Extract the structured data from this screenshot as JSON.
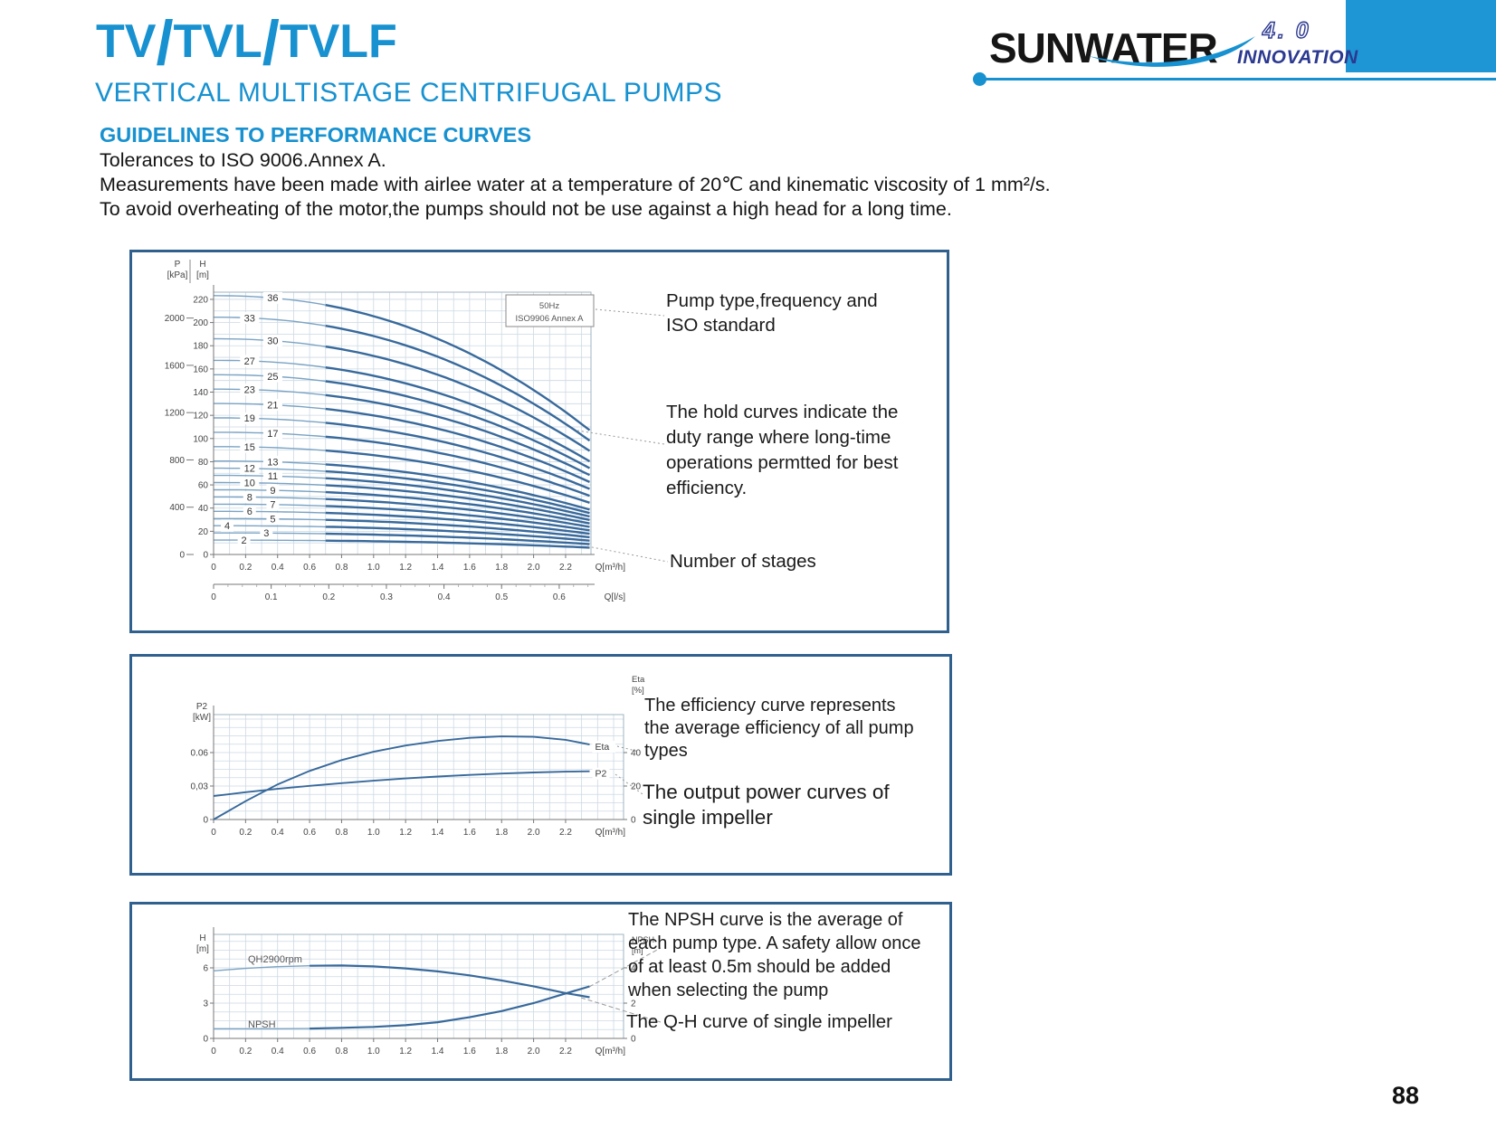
{
  "header": {
    "title": "TV/TVL/TVLF",
    "subtitle": "VERTICAL MULTISTAGE CENTRIFUGAL PUMPS"
  },
  "logo": {
    "brand": "SUNWATER",
    "version": "4. 0",
    "tagline": "INNOVATION"
  },
  "guidelines": {
    "heading": "GUIDELINES TO PERFORMANCE CURVES",
    "lines": [
      "Tolerances to ISO 9006.Annex A.",
      "Measurements have been made with airlee water at a temperature of 20℃ and kinematic viscosity of 1 mm²/s.",
      "To avoid overheating of the motor,the pumps should not be use against a high head for a long time."
    ]
  },
  "footer": {
    "page_number": "88"
  },
  "colors": {
    "accent": "#1791d0",
    "logo_navy": "#2b3990",
    "corner_block": "#1e95d4",
    "box_border": "#30618e",
    "grid": "#ccd9e3",
    "curve": "#7aa3c4",
    "curve_bold": "#38699b",
    "leader": "#999999",
    "axis_text": "#444444"
  },
  "chart_data": [
    {
      "id": "qh-stage-family",
      "type": "line",
      "corner_box": {
        "line1": "50Hz",
        "line2": "ISO9906 Annex A"
      },
      "y_axis_pressure": {
        "label": "P",
        "unit": "[kPa]",
        "ticks": [
          0,
          400,
          800,
          1200,
          1600,
          2000
        ]
      },
      "y_axis_head": {
        "label": "H",
        "unit": "[m]",
        "ticks": [
          0,
          20,
          40,
          60,
          80,
          100,
          120,
          140,
          160,
          180,
          200,
          220
        ]
      },
      "x_axis_primary": {
        "unit": "Q[m³/h]",
        "ticks": [
          0,
          0.2,
          0.4,
          0.6,
          0.8,
          1.0,
          1.2,
          1.4,
          1.6,
          1.8,
          2.0,
          2.2
        ]
      },
      "x_axis_secondary": {
        "unit": "Q[l/s]",
        "ticks": [
          0,
          0.1,
          0.2,
          0.3,
          0.4,
          0.5,
          0.6
        ]
      },
      "stages": [
        2,
        3,
        4,
        5,
        6,
        7,
        8,
        9,
        10,
        11,
        12,
        13,
        15,
        17,
        19,
        21,
        23,
        25,
        27,
        30,
        33,
        36
      ],
      "head_per_stage_m": 6.2,
      "q_end_m3h": 2.35,
      "duty_range_start_m3h": 0.72,
      "head_drop_fraction_at_end": 0.52,
      "annotations": [
        {
          "text": "Pump type,frequency and ISO standard"
        },
        {
          "text": "The hold curves indicate the duty range where long-time operations permtted for best efficiency."
        },
        {
          "text": "Number of stages"
        }
      ]
    },
    {
      "id": "power-efficiency",
      "type": "line",
      "y_axis_left": {
        "label": "P2",
        "unit": "[kW]",
        "ticks": [
          0,
          0.03,
          0.06
        ],
        "tick_labels": [
          "0",
          "0,03",
          "0.06"
        ]
      },
      "y_axis_right": {
        "label": "Eta",
        "unit": "[%]",
        "ticks": [
          0,
          20,
          40
        ]
      },
      "x_axis": {
        "unit": "Q[m³/h]",
        "ticks": [
          0,
          0.2,
          0.4,
          0.6,
          0.8,
          1.0,
          1.2,
          1.4,
          1.6,
          1.8,
          2.0,
          2.2
        ]
      },
      "x": [
        0,
        0.2,
        0.4,
        0.6,
        0.8,
        1.0,
        1.2,
        1.4,
        1.6,
        1.8,
        2.0,
        2.2,
        2.35
      ],
      "series": [
        {
          "name": "Eta",
          "axis": "right",
          "values": [
            0,
            11,
            21,
            29,
            35.5,
            40.5,
            44.2,
            46.9,
            48.8,
            49.7,
            49.4,
            47.6,
            44.8
          ]
        },
        {
          "name": "P2",
          "axis": "left",
          "values": [
            0.021,
            0.0245,
            0.0275,
            0.0302,
            0.0326,
            0.0348,
            0.0368,
            0.0385,
            0.04,
            0.0412,
            0.0422,
            0.0429,
            0.0432
          ]
        }
      ],
      "annotations": [
        {
          "text": "The efficiency curve represents the average efficiency of all pump types"
        },
        {
          "text": "The output power curves of single impeller"
        }
      ]
    },
    {
      "id": "qh-npsh-single-impeller",
      "type": "line",
      "y_axis_left": {
        "label": "H",
        "unit": "[m]",
        "ticks": [
          0,
          3,
          6
        ]
      },
      "y_axis_right": {
        "label": "NPSH",
        "unit": "[m]",
        "ticks": [
          0,
          2,
          4
        ]
      },
      "x_axis": {
        "unit": "Q[m³/h]",
        "ticks": [
          0,
          0.2,
          0.4,
          0.6,
          0.8,
          1.0,
          1.2,
          1.4,
          1.6,
          1.8,
          2.0,
          2.2
        ]
      },
      "x": [
        0,
        0.2,
        0.4,
        0.6,
        0.8,
        1.0,
        1.2,
        1.4,
        1.6,
        1.8,
        2.0,
        2.2,
        2.35
      ],
      "duty_range_start_m3h": 0.7,
      "series": [
        {
          "name": "QH2900rpm",
          "axis": "left",
          "values": [
            5.75,
            5.95,
            6.1,
            6.18,
            6.2,
            6.12,
            5.95,
            5.7,
            5.36,
            4.93,
            4.43,
            3.85,
            3.5
          ]
        },
        {
          "name": "NPSH",
          "axis": "right",
          "values": [
            0.55,
            0.55,
            0.55,
            0.56,
            0.6,
            0.65,
            0.75,
            0.92,
            1.2,
            1.55,
            2.0,
            2.55,
            2.95
          ]
        }
      ],
      "annotations": [
        {
          "text": "The NPSH curve is the average of each  pump type.  A safety allow once of at least 0.5m should be added when selecting the pump"
        },
        {
          "text": "The Q-H curve of single impeller"
        }
      ]
    }
  ]
}
